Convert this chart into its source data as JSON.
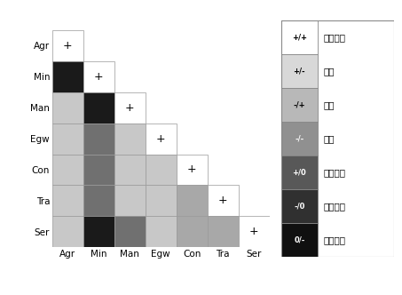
{
  "labels": [
    "Agr",
    "Min",
    "Man",
    "Egw",
    "Con",
    "Tra",
    "Ser"
  ],
  "legend_entries": [
    {
      "symbol": "+/+",
      "label": "互利共生",
      "color": "#ffffff"
    },
    {
      "symbol": "+/-",
      "label": "掠夺",
      "color": "#d8d8d8"
    },
    {
      "symbol": "-/+",
      "label": "控制",
      "color": "#b8b8b8"
    },
    {
      "symbol": "-/-",
      "label": "竞争",
      "color": "#909090"
    },
    {
      "symbol": "+/0",
      "label": "偏利共生",
      "color": "#585858"
    },
    {
      "symbol": "-/0",
      "label": "偏害寄生",
      "color": "#303030"
    },
    {
      "symbol": "0/-",
      "label": "无害共生",
      "color": "#101010"
    }
  ],
  "matrix": [
    [
      0,
      -1,
      -1,
      -1,
      -1,
      -1,
      -1
    ],
    [
      6,
      0,
      -1,
      -1,
      -1,
      -1,
      -1
    ],
    [
      2,
      6,
      0,
      -1,
      -1,
      -1,
      -1
    ],
    [
      2,
      4,
      2,
      0,
      -1,
      -1,
      -1
    ],
    [
      2,
      4,
      2,
      2,
      0,
      -1,
      -1
    ],
    [
      2,
      4,
      2,
      2,
      3,
      0,
      -1
    ],
    [
      2,
      6,
      4,
      2,
      3,
      3,
      0
    ]
  ],
  "color_map": {
    "0": "#ffffff",
    "1": "#e8e8e8",
    "2": "#c8c8c8",
    "3": "#a8a8a8",
    "4": "#707070",
    "5": "#484848",
    "6": "#1a1a1a"
  },
  "background": "#ffffff",
  "cell_edge_color": "#999999",
  "cell_edge_lw": 0.5
}
